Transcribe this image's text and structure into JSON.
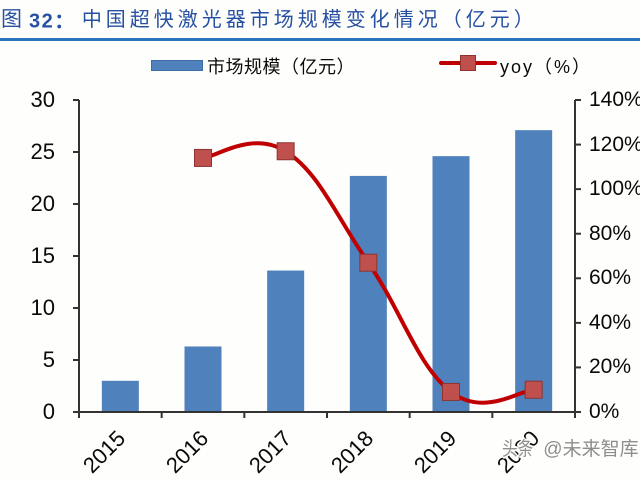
{
  "title": {
    "fig": "图",
    "num": " 32：",
    "text": "中国超快激光器市场规模变化情况（亿元）"
  },
  "legend": {
    "bar_label": "市场规模（亿元）",
    "line_label": "yoy（%）"
  },
  "watermark": {
    "brand": "头条",
    "handle": "@未来智库"
  },
  "colors": {
    "title_text": "#2750A2",
    "title_rule": "#2B74BE",
    "bar_fill": "#4F81BD",
    "line_stroke": "#C00000",
    "marker_fill": "#C0504D",
    "marker_border": "#8E3330",
    "axis_line": "#333333",
    "label_text": "#0A0A0A",
    "watermark_text": "#8E8E8E"
  },
  "chart_data": {
    "type": "bar",
    "subtype": "bar-line-combo",
    "title": "中国超快激光器市场规模变化情况（亿元）",
    "categories": [
      "2015",
      "2016",
      "2017",
      "2018",
      "2019",
      "2020"
    ],
    "series": [
      {
        "name": "市场规模（亿元）",
        "type": "bar",
        "axis": "left",
        "values": [
          3.0,
          6.3,
          13.6,
          22.7,
          24.6,
          27.1
        ]
      },
      {
        "name": "yoy（%）",
        "type": "line",
        "axis": "right",
        "smooth": true,
        "values": [
          null,
          114,
          117,
          67,
          9,
          10
        ]
      }
    ],
    "left_axis": {
      "min": 0,
      "max": 30,
      "step": 5,
      "tick_labels": [
        "0",
        "5",
        "10",
        "15",
        "20",
        "25",
        "30"
      ]
    },
    "right_axis": {
      "min": 0,
      "max": 140,
      "step": 20,
      "tick_labels": [
        "0%",
        "20%",
        "40%",
        "60%",
        "80%",
        "100%",
        "120%",
        "140%"
      ]
    },
    "grid": false,
    "legend_position": "top",
    "xlabel": "",
    "ylabel": ""
  }
}
